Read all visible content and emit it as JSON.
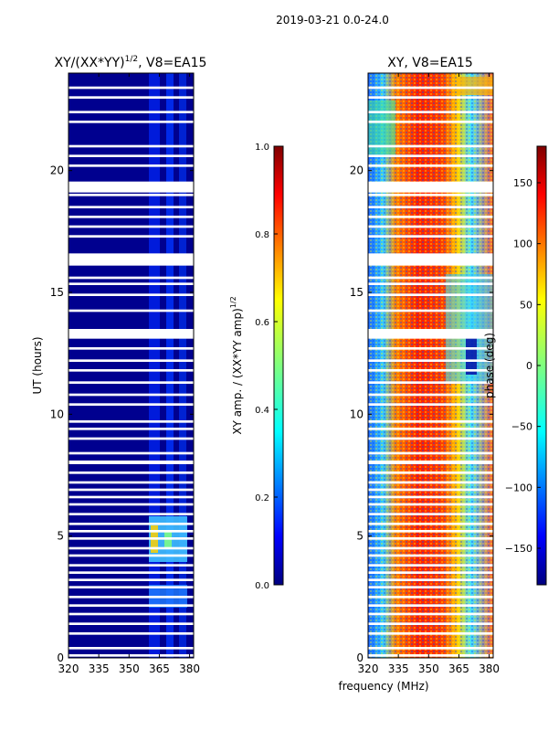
{
  "figure_title": "2019-03-21 0.0-24.0",
  "shared_xlabel": "frequency (MHz)",
  "chart_data": [
    {
      "type": "heatmap",
      "title_main": "XY/(XX*YY)",
      "title_sup": "1/2",
      "title_rest": ", V8=EA15",
      "xlabel": "",
      "ylabel": "UT (hours)",
      "xlim": [
        320,
        382
      ],
      "ylim": [
        0,
        24
      ],
      "xticks": [
        320,
        335,
        350,
        365,
        380
      ],
      "yticks": [
        0,
        5,
        10,
        15,
        20
      ],
      "flagged_hours": [
        [
          0.05,
          0.15
        ],
        [
          0.35,
          0.45
        ],
        [
          0.95,
          1.05
        ],
        [
          1.35,
          1.45
        ],
        [
          1.75,
          1.85
        ],
        [
          2.1,
          2.2
        ],
        [
          2.45,
          2.55
        ],
        [
          2.85,
          2.95
        ],
        [
          3.15,
          3.25
        ],
        [
          3.45,
          3.55
        ],
        [
          3.75,
          3.85
        ],
        [
          4.15,
          4.25
        ],
        [
          4.45,
          4.55
        ],
        [
          4.85,
          4.95
        ],
        [
          5.15,
          5.25
        ],
        [
          5.45,
          5.55
        ],
        [
          5.85,
          5.95
        ],
        [
          6.25,
          6.35
        ],
        [
          6.55,
          6.65
        ],
        [
          6.85,
          6.95
        ],
        [
          7.15,
          7.25
        ],
        [
          7.55,
          7.65
        ],
        [
          7.95,
          8.1
        ],
        [
          8.35,
          8.45
        ],
        [
          8.95,
          9.05
        ],
        [
          9.35,
          9.45
        ],
        [
          9.65,
          9.75
        ],
        [
          10.35,
          10.45
        ],
        [
          10.75,
          10.85
        ],
        [
          11.25,
          11.35
        ],
        [
          11.75,
          11.85
        ],
        [
          12.15,
          12.25
        ],
        [
          12.65,
          12.75
        ],
        [
          13.1,
          13.5
        ],
        [
          14.2,
          14.3
        ],
        [
          14.85,
          14.95
        ],
        [
          15.3,
          15.4
        ],
        [
          15.55,
          15.65
        ],
        [
          16.1,
          16.6
        ],
        [
          17.25,
          17.35
        ],
        [
          17.65,
          17.75
        ],
        [
          18.05,
          18.15
        ],
        [
          18.45,
          18.55
        ],
        [
          18.95,
          19.05
        ],
        [
          19.1,
          19.55
        ],
        [
          20.15,
          20.25
        ],
        [
          20.55,
          20.65
        ],
        [
          20.95,
          21.05
        ],
        [
          21.95,
          22.05
        ],
        [
          22.35,
          22.45
        ],
        [
          22.95,
          23.05
        ],
        [
          23.35,
          23.45
        ]
      ],
      "colorbar": {
        "label_main": "XY amp. / (XX*YY amp)",
        "label_sup": "1/2",
        "range": [
          0.0,
          1.0
        ],
        "ticks": [
          "0.0",
          "0.2",
          "0.4",
          "0.6",
          "0.8",
          "1.0"
        ]
      }
    },
    {
      "type": "heatmap",
      "title": "XY, V8=EA15",
      "xlabel": "frequency (MHz)",
      "ylabel": "",
      "xlim": [
        320,
        382
      ],
      "ylim": [
        0,
        24
      ],
      "xticks": [
        320,
        335,
        350,
        365,
        380
      ],
      "yticks": [
        0,
        5,
        10,
        15,
        20
      ],
      "flagged_hours": [
        [
          0.05,
          0.15
        ],
        [
          0.35,
          0.45
        ],
        [
          0.95,
          1.05
        ],
        [
          1.35,
          1.45
        ],
        [
          1.75,
          1.85
        ],
        [
          2.1,
          2.2
        ],
        [
          2.45,
          2.55
        ],
        [
          2.85,
          2.95
        ],
        [
          3.15,
          3.25
        ],
        [
          3.45,
          3.55
        ],
        [
          3.75,
          3.85
        ],
        [
          4.15,
          4.25
        ],
        [
          4.45,
          4.55
        ],
        [
          4.85,
          4.95
        ],
        [
          5.15,
          5.25
        ],
        [
          5.45,
          5.55
        ],
        [
          5.85,
          5.95
        ],
        [
          6.25,
          6.35
        ],
        [
          6.55,
          6.65
        ],
        [
          6.85,
          6.95
        ],
        [
          7.15,
          7.25
        ],
        [
          7.55,
          7.65
        ],
        [
          7.95,
          8.1
        ],
        [
          8.35,
          8.45
        ],
        [
          8.95,
          9.05
        ],
        [
          9.35,
          9.45
        ],
        [
          9.65,
          9.75
        ],
        [
          10.35,
          10.45
        ],
        [
          10.75,
          10.85
        ],
        [
          11.25,
          11.35
        ],
        [
          11.75,
          11.85
        ],
        [
          12.15,
          12.25
        ],
        [
          12.65,
          12.75
        ],
        [
          13.1,
          13.5
        ],
        [
          14.2,
          14.3
        ],
        [
          14.85,
          14.95
        ],
        [
          15.3,
          15.4
        ],
        [
          15.55,
          15.65
        ],
        [
          16.1,
          16.6
        ],
        [
          17.25,
          17.35
        ],
        [
          17.65,
          17.75
        ],
        [
          18.05,
          18.15
        ],
        [
          18.45,
          18.55
        ],
        [
          18.95,
          19.05
        ],
        [
          19.1,
          19.55
        ],
        [
          20.15,
          20.25
        ],
        [
          20.55,
          20.65
        ],
        [
          20.95,
          21.05
        ],
        [
          21.95,
          22.05
        ],
        [
          22.35,
          22.45
        ],
        [
          22.95,
          23.05
        ],
        [
          23.35,
          23.45
        ]
      ],
      "colorbar": {
        "label": "phase (deg)",
        "range": [
          -180,
          180
        ],
        "ticks": [
          "−150",
          "−100",
          "−50",
          "0",
          "50",
          "100",
          "150"
        ],
        "tick_values": [
          -150,
          -100,
          -50,
          0,
          50,
          100,
          150
        ]
      }
    }
  ],
  "colors": {
    "jet": [
      "#00007f",
      "#0000ff",
      "#007fff",
      "#00ffff",
      "#7fff7f",
      "#ffff00",
      "#ff7f00",
      "#ff0000",
      "#7f0000"
    ],
    "background": "#ffffff",
    "axis": "#000000"
  }
}
